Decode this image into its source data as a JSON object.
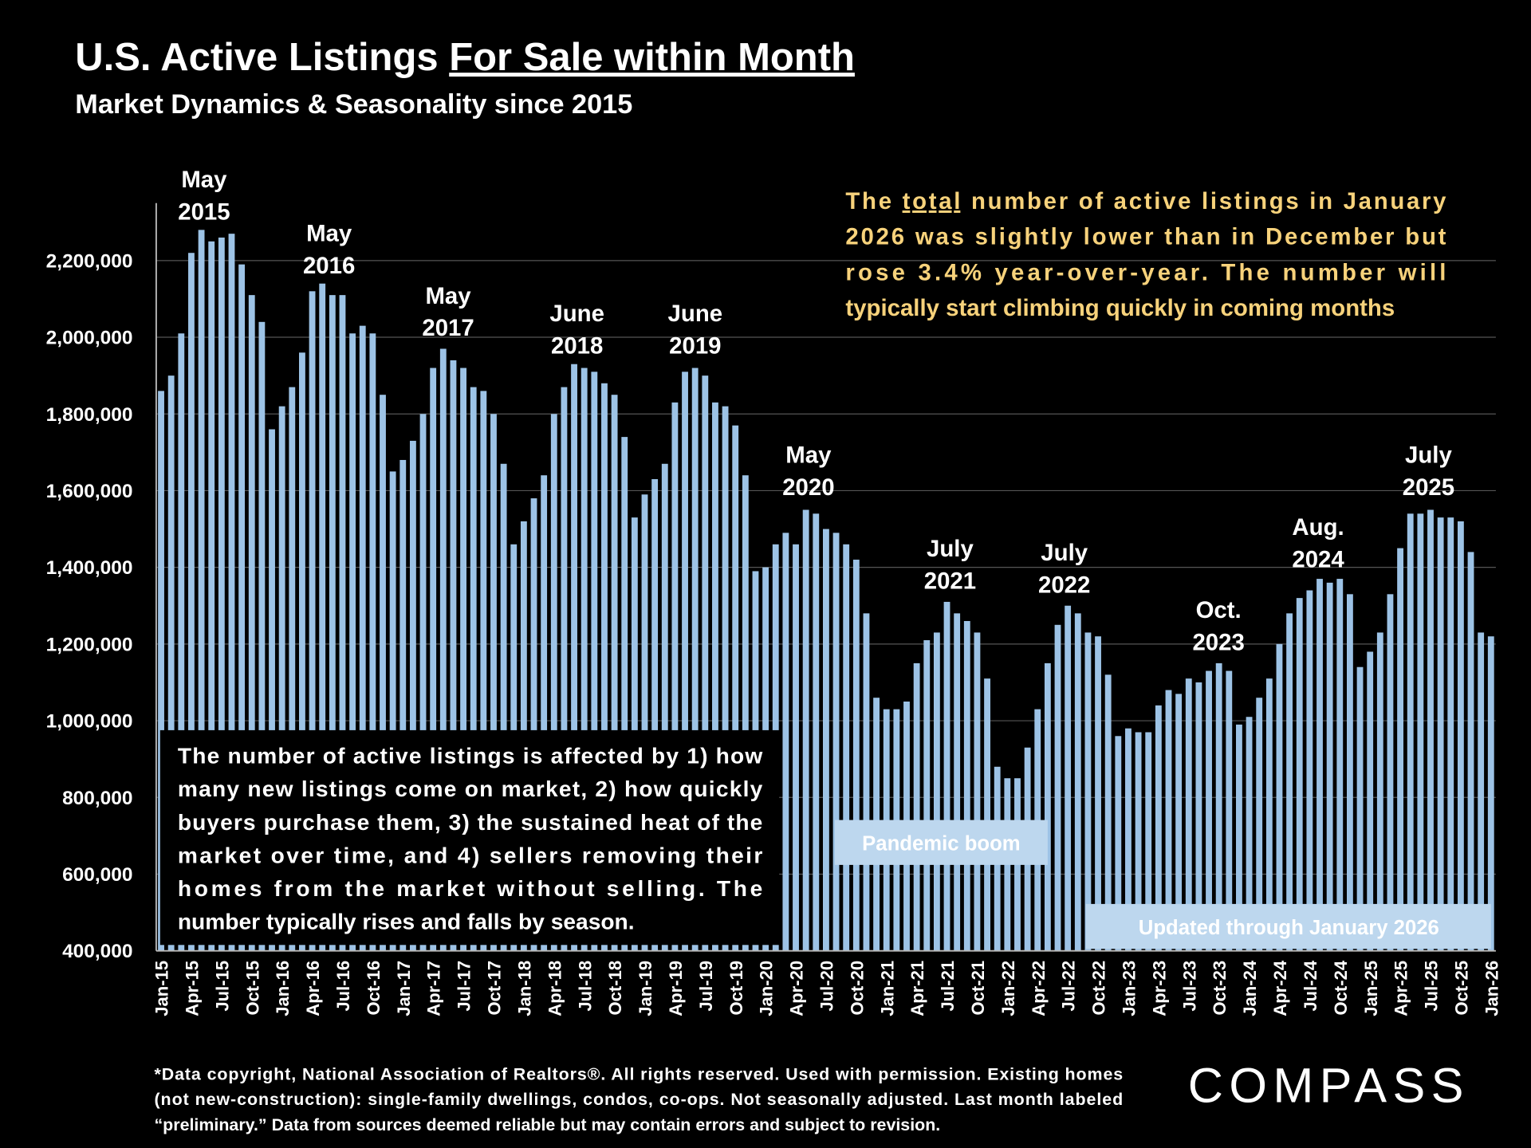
{
  "chart_data": {
    "type": "bar",
    "title": [
      "U.S. Active Listings ",
      "For Sale within Month"
    ],
    "subtitle": "Market Dynamics & Seasonality since 2015",
    "color": "#9dc3e6",
    "grid": true,
    "ylim": [
      400000,
      2350000
    ],
    "yticks": [
      {
        "value": 400000,
        "label": "400,000"
      },
      {
        "value": 600000,
        "label": "600,000"
      },
      {
        "value": 800000,
        "label": "800,000"
      },
      {
        "value": 1000000,
        "label": "1,000,000"
      },
      {
        "value": 1200000,
        "label": "1,200,000"
      },
      {
        "value": 1400000,
        "label": "1,400,000"
      },
      {
        "value": 1600000,
        "label": "1,600,000"
      },
      {
        "value": 1800000,
        "label": "1,800,000"
      },
      {
        "value": 2000000,
        "label": "2,000,000"
      },
      {
        "value": 2200000,
        "label": "2,200,000"
      }
    ],
    "categories": [
      "Jan-15",
      null,
      null,
      "Apr-15",
      null,
      null,
      "Jul-15",
      null,
      null,
      "Oct-15",
      null,
      null,
      "Jan-16",
      null,
      null,
      "Apr-16",
      null,
      null,
      "Jul-16",
      null,
      null,
      "Oct-16",
      null,
      null,
      "Jan-17",
      null,
      null,
      "Apr-17",
      null,
      null,
      "Jul-17",
      null,
      null,
      "Oct-17",
      null,
      null,
      "Jan-18",
      null,
      null,
      "Apr-18",
      null,
      null,
      "Jul-18",
      null,
      null,
      "Oct-18",
      null,
      null,
      "Jan-19",
      null,
      null,
      "Apr-19",
      null,
      null,
      "Jul-19",
      null,
      null,
      "Oct-19",
      null,
      null,
      "Jan-20",
      null,
      null,
      "Apr-20",
      null,
      null,
      "Jul-20",
      null,
      null,
      "Oct-20",
      null,
      null,
      "Jan-21",
      null,
      null,
      "Apr-21",
      null,
      null,
      "Jul-21",
      null,
      null,
      "Oct-21",
      null,
      null,
      "Jan-22",
      null,
      null,
      "Apr-22",
      null,
      null,
      "Jul-22",
      null,
      null,
      "Oct-22",
      null,
      null,
      "Jan-23",
      null,
      null,
      "Apr-23",
      null,
      null,
      "Jul-23",
      null,
      null,
      "Oct-23",
      null,
      null,
      "Jan-24",
      null,
      null,
      "Apr-24",
      null,
      null,
      "Jul-24",
      null,
      null,
      "Oct-24",
      null,
      null,
      "Jan-25",
      null,
      null,
      "Apr-25",
      null,
      null,
      "Jul-25",
      null,
      null,
      "Oct-25",
      null,
      null,
      "Jan-26"
    ],
    "values": [
      1860000,
      1900000,
      2010000,
      2220000,
      2280000,
      2250000,
      2260000,
      2270000,
      2190000,
      2110000,
      2040000,
      1760000,
      1820000,
      1870000,
      1960000,
      2120000,
      2140000,
      2110000,
      2110000,
      2010000,
      2030000,
      2010000,
      1850000,
      1650000,
      1680000,
      1730000,
      1800000,
      1920000,
      1970000,
      1940000,
      1920000,
      1870000,
      1860000,
      1800000,
      1670000,
      1460000,
      1520000,
      1580000,
      1640000,
      1800000,
      1870000,
      1930000,
      1920000,
      1910000,
      1880000,
      1850000,
      1740000,
      1530000,
      1590000,
      1630000,
      1670000,
      1830000,
      1910000,
      1920000,
      1900000,
      1830000,
      1820000,
      1770000,
      1640000,
      1390000,
      1400000,
      1460000,
      1490000,
      1460000,
      1550000,
      1540000,
      1500000,
      1490000,
      1460000,
      1420000,
      1280000,
      1060000,
      1030000,
      1030000,
      1050000,
      1150000,
      1210000,
      1230000,
      1310000,
      1280000,
      1260000,
      1230000,
      1110000,
      880000,
      850000,
      850000,
      930000,
      1030000,
      1150000,
      1250000,
      1300000,
      1280000,
      1230000,
      1220000,
      1120000,
      960000,
      980000,
      970000,
      970000,
      1040000,
      1080000,
      1070000,
      1110000,
      1100000,
      1130000,
      1150000,
      1130000,
      990000,
      1010000,
      1060000,
      1110000,
      1200000,
      1280000,
      1320000,
      1340000,
      1370000,
      1360000,
      1370000,
      1330000,
      1140000,
      1180000,
      1230000,
      1330000,
      1450000,
      1540000,
      1540000,
      1550000,
      1530000,
      1530000,
      1520000,
      1440000,
      1230000,
      1220000
    ],
    "annotations": [
      {
        "lines": [
          "May",
          "2015"
        ]
      },
      {
        "lines": [
          "May",
          "2016"
        ]
      },
      {
        "lines": [
          "May",
          "2017"
        ]
      },
      {
        "lines": [
          "June",
          "2018"
        ]
      },
      {
        "lines": [
          "June",
          "2019"
        ]
      },
      {
        "lines": [
          "May",
          "2020"
        ]
      },
      {
        "lines": [
          "July",
          "2021"
        ]
      },
      {
        "lines": [
          "July",
          "2022"
        ]
      },
      {
        "lines": [
          "Oct.",
          "2023"
        ]
      },
      {
        "lines": [
          "Aug.",
          "2024"
        ]
      },
      {
        "lines": [
          "July",
          "2025"
        ]
      }
    ],
    "note_right": [
      [
        "The ",
        "total",
        " number of active listings in January"
      ],
      [
        "2026 was slightly lower than in December but"
      ],
      [
        "rose 3.4% year-over-year. The number will"
      ],
      [
        "typically start climbing quickly in coming months"
      ]
    ],
    "note_left": [
      "The number of active listings is affected by 1) how",
      "many new listings come on market, 2) how quickly",
      "buyers purchase them, 3) the sustained heat of the",
      "market over time, and 4) sellers removing their",
      "homes from the market without selling. The",
      "number typically rises and falls by season."
    ],
    "box_pandemic": "Pandemic boom",
    "box_updated": "Updated through January 2026",
    "footnote": [
      "*Data copyright, National Association of Realtors®. All rights reserved. Used with permission. Existing homes",
      "(not new-construction): single-family dwellings, condos, co-ops. Not seasonally adjusted. Last month labeled",
      "“preliminary.” Data from sources deemed reliable but may contain errors and subject to revision."
    ],
    "logo": "COMPASS"
  }
}
